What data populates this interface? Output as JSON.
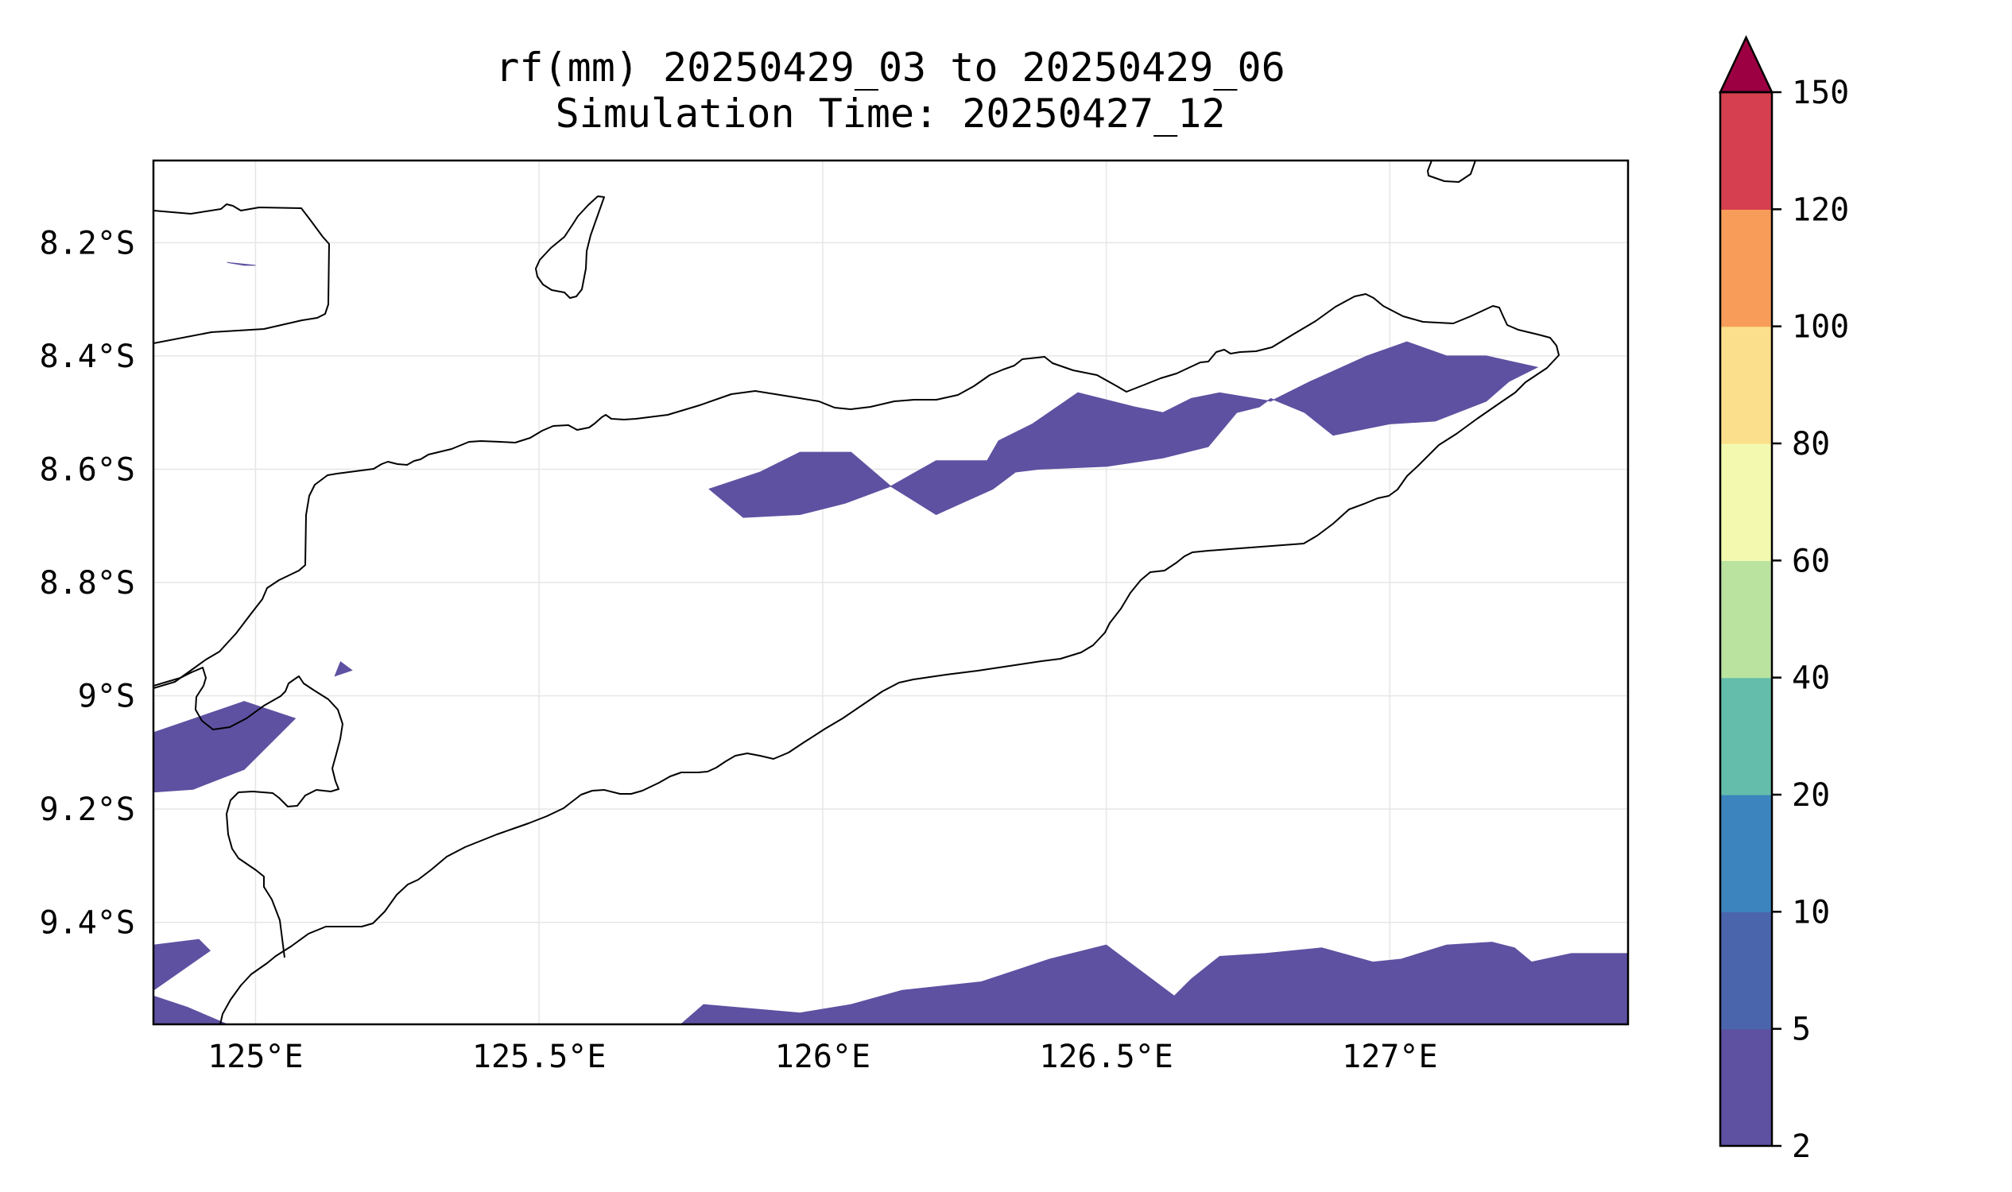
{
  "title": {
    "line1": "rf(mm) 20250429_03 to 20250429_06",
    "line2": "Simulation Time: 20250427_12"
  },
  "map": {
    "lon_range": [
      124.82,
      127.42
    ],
    "lat_range": [
      -9.58,
      -8.055
    ],
    "grid": true,
    "x_ticks": [
      {
        "value": 125.0,
        "label": "125°E"
      },
      {
        "value": 125.5,
        "label": "125.5°E"
      },
      {
        "value": 126.0,
        "label": "126°E"
      },
      {
        "value": 126.5,
        "label": "126.5°E"
      },
      {
        "value": 127.0,
        "label": "127°E"
      }
    ],
    "y_ticks": [
      {
        "value": -8.2,
        "label": "8.2°S"
      },
      {
        "value": -8.4,
        "label": "8.4°S"
      },
      {
        "value": -8.6,
        "label": "8.6°S"
      },
      {
        "value": -8.8,
        "label": "8.8°S"
      },
      {
        "value": -9.0,
        "label": "9°S"
      },
      {
        "value": -9.2,
        "label": "9.2°S"
      },
      {
        "value": -9.4,
        "label": "9.4°S"
      }
    ],
    "coastline_color": "#000000",
    "rain_color": "#5e51a1"
  },
  "colorbar": {
    "extend": "max",
    "ticks": [
      "2",
      "5",
      "10",
      "20",
      "40",
      "60",
      "80",
      "100",
      "120",
      "150"
    ],
    "colors": [
      "#5e51a1",
      "#4b65ad",
      "#3c84bd",
      "#64bdab",
      "#bae39f",
      "#f3fab0",
      "#fcdf8c",
      "#f89d59",
      "#d63f4f",
      "#9d0042"
    ]
  },
  "chart_data": {
    "type": "heatmap",
    "variable": "rf(mm)",
    "title": "rf(mm) 20250429_03 to 20250429_06",
    "subtitle": "Simulation Time: 20250427_12",
    "xlim": [
      124.82,
      127.42
    ],
    "ylim": [
      -9.58,
      -8.055
    ],
    "levels": [
      2,
      5,
      10,
      20,
      40,
      60,
      80,
      100,
      120,
      150
    ],
    "rain_areas": [
      {
        "level": "2-5",
        "polygon": [
          [
            124.95,
            -8.235
          ],
          [
            125.0,
            -8.24
          ],
          [
            124.98,
            -8.24
          ]
        ]
      },
      {
        "level": "2-5",
        "polygon": [
          [
            125.14,
            -8.965
          ],
          [
            125.17,
            -8.955
          ],
          [
            125.15,
            -8.94
          ]
        ]
      },
      {
        "level": "2-5",
        "polygon": [
          [
            124.82,
            -9.065
          ],
          [
            124.98,
            -9.01
          ],
          [
            125.07,
            -9.04
          ],
          [
            124.98,
            -9.13
          ],
          [
            124.89,
            -9.165
          ],
          [
            124.82,
            -9.17
          ]
        ]
      },
      {
        "level": "2-5",
        "polygon": [
          [
            125.8,
            -8.635
          ],
          [
            125.89,
            -8.605
          ],
          [
            125.96,
            -8.57
          ],
          [
            126.05,
            -8.57
          ],
          [
            126.12,
            -8.63
          ],
          [
            126.2,
            -8.585
          ],
          [
            126.29,
            -8.585
          ],
          [
            126.31,
            -8.55
          ],
          [
            126.37,
            -8.52
          ],
          [
            126.45,
            -8.465
          ],
          [
            126.55,
            -8.49
          ],
          [
            126.6,
            -8.5
          ],
          [
            126.65,
            -8.475
          ],
          [
            126.7,
            -8.465
          ],
          [
            126.79,
            -8.48
          ],
          [
            126.86,
            -8.445
          ],
          [
            126.96,
            -8.4
          ],
          [
            127.03,
            -8.375
          ],
          [
            127.1,
            -8.4
          ],
          [
            127.17,
            -8.4
          ],
          [
            127.26,
            -8.42
          ],
          [
            127.21,
            -8.445
          ],
          [
            127.17,
            -8.48
          ],
          [
            127.08,
            -8.515
          ],
          [
            127.0,
            -8.52
          ],
          [
            126.9,
            -8.54
          ],
          [
            126.85,
            -8.5
          ],
          [
            126.79,
            -8.475
          ],
          [
            126.77,
            -8.49
          ],
          [
            126.73,
            -8.5
          ],
          [
            126.68,
            -8.56
          ],
          [
            126.6,
            -8.58
          ],
          [
            126.5,
            -8.595
          ],
          [
            126.38,
            -8.6
          ],
          [
            126.34,
            -8.605
          ],
          [
            126.3,
            -8.635
          ],
          [
            126.2,
            -8.68
          ],
          [
            126.12,
            -8.63
          ],
          [
            126.04,
            -8.66
          ],
          [
            125.96,
            -8.68
          ],
          [
            125.86,
            -8.685
          ]
        ]
      },
      {
        "level": "2-5",
        "polygon": [
          [
            124.82,
            -9.44
          ],
          [
            124.9,
            -9.43
          ],
          [
            124.92,
            -9.45
          ],
          [
            124.82,
            -9.52
          ]
        ]
      },
      {
        "level": "2-5",
        "polygon": [
          [
            124.82,
            -9.53
          ],
          [
            124.88,
            -9.55
          ],
          [
            124.95,
            -9.58
          ],
          [
            124.82,
            -9.58
          ]
        ]
      },
      {
        "level": "2-5",
        "polygon": [
          [
            125.75,
            -9.58
          ],
          [
            125.79,
            -9.545
          ],
          [
            125.96,
            -9.56
          ],
          [
            126.05,
            -9.545
          ],
          [
            126.14,
            -9.52
          ],
          [
            126.28,
            -9.505
          ],
          [
            126.4,
            -9.465
          ],
          [
            126.5,
            -9.44
          ],
          [
            126.58,
            -9.5
          ],
          [
            126.62,
            -9.53
          ],
          [
            126.65,
            -9.5
          ],
          [
            126.7,
            -9.46
          ],
          [
            126.78,
            -9.455
          ],
          [
            126.88,
            -9.445
          ],
          [
            126.97,
            -9.47
          ],
          [
            127.02,
            -9.465
          ],
          [
            127.1,
            -9.44
          ],
          [
            127.18,
            -9.435
          ],
          [
            127.22,
            -9.445
          ],
          [
            127.25,
            -9.47
          ],
          [
            127.32,
            -9.455
          ],
          [
            127.42,
            -9.455
          ],
          [
            127.42,
            -9.58
          ]
        ]
      }
    ]
  }
}
